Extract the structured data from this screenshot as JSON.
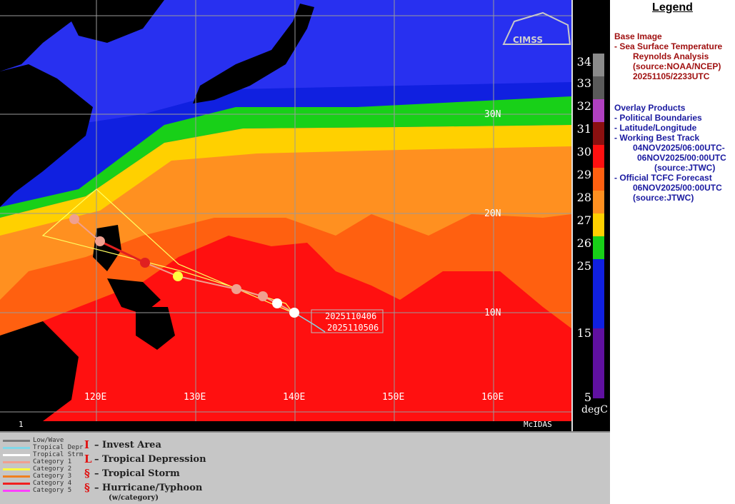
{
  "map": {
    "lat_labels": [
      "30N",
      "20N",
      "10N"
    ],
    "lon_labels": [
      "120E",
      "130E",
      "140E",
      "150E",
      "160E"
    ],
    "track_start_label": "2025110406",
    "track_end_label": "2025110506",
    "frame_number": "1",
    "mcidas_label": "McIDAS",
    "logo_text": "CIMSS"
  },
  "colorbar": {
    "labels": [
      "34",
      "33",
      "32",
      "31",
      "30",
      "29",
      "28",
      "27",
      "26",
      "25",
      "15",
      "5"
    ],
    "unit": "degC",
    "colors": [
      "#8a8a8a",
      "#5a5a5a",
      "#b040c0",
      "#8a1010",
      "#ff1010",
      "#ff6010",
      "#ff9020",
      "#ffd000",
      "#18d018",
      "#1020e0",
      "#3818c0",
      "#6010a0"
    ]
  },
  "legend": {
    "title": "Legend",
    "base_image_heading": "Base Image",
    "base_image_lines": [
      "-  Sea Surface Temperature",
      "Reynolds Analysis",
      "(source:NOAA/NCEP)",
      "20251105/2233UTC"
    ],
    "overlay_heading": "Overlay Products",
    "overlay_lines": [
      "-  Political Boundaries",
      "-  Latitude/Longitude",
      "-  Working Best Track",
      "04NOV2025/06:00UTC-",
      "06NOV2025/00:00UTC",
      "(source:JTWC)",
      "-  Official TCFC Forecast",
      "06NOV2025/00:00UTC",
      "(source:JTWC)"
    ]
  },
  "track_key": {
    "items": [
      {
        "label": "Low/Wave",
        "color": "#7a7a7a"
      },
      {
        "label": "Tropical Depr",
        "color": "#80d8e8"
      },
      {
        "label": "Tropical Strm",
        "color": "#ffffff"
      },
      {
        "label": "Category 1",
        "color": "#f0a090"
      },
      {
        "label": "Category 2",
        "color": "#ffff40"
      },
      {
        "label": "Category 3",
        "color": "#f08020"
      },
      {
        "label": "Category 4",
        "color": "#f02020"
      },
      {
        "label": "Category 5",
        "color": "#ff40ff"
      }
    ],
    "symbols": [
      {
        "glyph": "I",
        "label": "– Invest Area"
      },
      {
        "glyph": "L",
        "label": "– Tropical Depression"
      },
      {
        "glyph": "§",
        "label": "– Tropical Storm"
      },
      {
        "glyph": "§",
        "label": "– Hurricane/Typhoon"
      }
    ],
    "symbol_note": "(w/category)"
  }
}
